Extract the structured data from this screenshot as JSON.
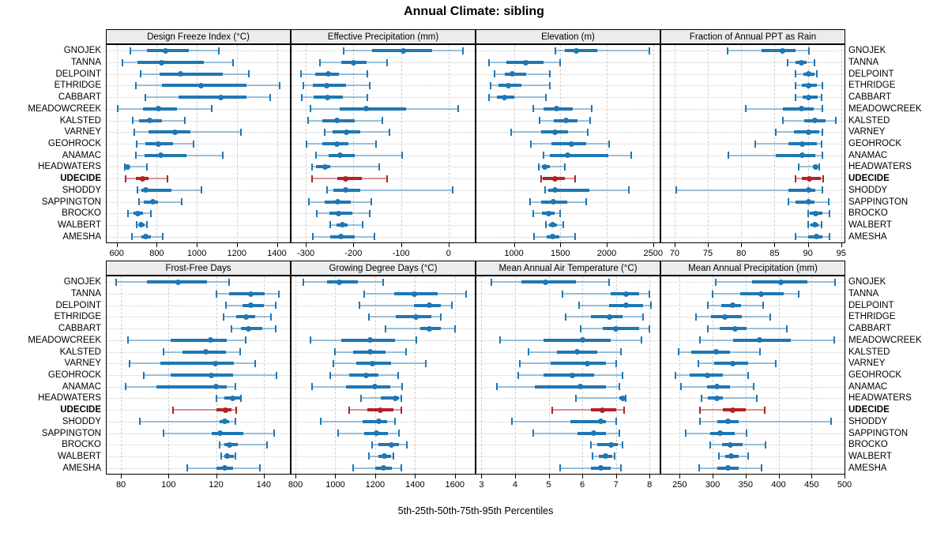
{
  "title": "Annual Climate: sibling",
  "footer": "5th-25th-50th-75th-95th Percentiles",
  "colors": {
    "series_blue": "#1f77b4",
    "series_blue_light": "rgba(31,119,180,0.42)",
    "highlight_red": "#b22222",
    "highlight_red_light": "rgba(178,34,34,0.45)",
    "panel_header_bg": "#ececec",
    "grid": "#cfcfcf",
    "border": "#000000"
  },
  "chart_data": {
    "type": "table",
    "subtype": "trellis-percentile-dotplot",
    "statistic_labels": [
      "5th",
      "25th",
      "50th",
      "75th",
      "95th"
    ],
    "sites": [
      "GNOJEK",
      "TANNA",
      "DELPOINT",
      "ETHRIDGE",
      "CABBART",
      "MEADOWCREEK",
      "KALSTED",
      "VARNEY",
      "GEOHROCK",
      "ANAMAC",
      "HEADWATERS",
      "UDECIDE",
      "SHODDY",
      "SAPPINGTON",
      "BROCKO",
      "WALBERT",
      "AMESHA"
    ],
    "highlight_site": "UDECIDE",
    "panels": [
      {
        "id": "design-freeze-index",
        "title": "Design Freeze Index (°C)",
        "xlim": [
          550,
          1465
        ],
        "ticks": [
          600,
          800,
          1000,
          1200,
          1400
        ],
        "values": [
          [
            670,
            750,
            845,
            960,
            1110
          ],
          [
            630,
            705,
            825,
            1035,
            1180
          ],
          [
            720,
            815,
            920,
            1130,
            1260
          ],
          [
            695,
            825,
            1020,
            1250,
            1415
          ],
          [
            745,
            910,
            1120,
            1250,
            1365
          ],
          [
            605,
            730,
            810,
            900,
            1075
          ],
          [
            680,
            710,
            765,
            825,
            940
          ],
          [
            690,
            760,
            890,
            970,
            1220
          ],
          [
            700,
            745,
            810,
            880,
            985
          ],
          [
            695,
            740,
            820,
            950,
            1130
          ],
          [
            640,
            645,
            655,
            665,
            750
          ],
          [
            645,
            695,
            730,
            760,
            855
          ],
          [
            705,
            725,
            745,
            875,
            1025
          ],
          [
            710,
            735,
            780,
            805,
            925
          ],
          [
            655,
            685,
            707,
            730,
            770
          ],
          [
            700,
            710,
            723,
            740,
            750
          ],
          [
            675,
            723,
            745,
            770,
            830
          ]
        ]
      },
      {
        "id": "effective-precipitation",
        "title": "Effective Precipitation (mm)",
        "xlim": [
          -330,
          55
        ],
        "ticks": [
          -300,
          -200,
          -100,
          0
        ],
        "values": [
          [
            -220,
            -160,
            -95,
            -35,
            30
          ],
          [
            -270,
            -225,
            -200,
            -173,
            -130
          ],
          [
            -310,
            -280,
            -253,
            -231,
            -170
          ],
          [
            -305,
            -285,
            -256,
            -215,
            -165
          ],
          [
            -308,
            -283,
            -255,
            -222,
            -170
          ],
          [
            -290,
            -228,
            -174,
            -90,
            20
          ],
          [
            -295,
            -265,
            -234,
            -197,
            -139
          ],
          [
            -260,
            -244,
            -215,
            -186,
            -125
          ],
          [
            -298,
            -266,
            -234,
            -210,
            -152
          ],
          [
            -278,
            -252,
            -228,
            -197,
            -98
          ],
          [
            -287,
            -278,
            -260,
            -248,
            -146
          ],
          [
            -287,
            -234,
            -216,
            -182,
            -130
          ],
          [
            -256,
            -242,
            -216,
            -186,
            9
          ],
          [
            -294,
            -260,
            -233,
            -206,
            -163
          ],
          [
            -277,
            -250,
            -231,
            -203,
            -166
          ],
          [
            -249,
            -236,
            -223,
            -212,
            -181
          ],
          [
            -286,
            -249,
            -226,
            -198,
            -156
          ]
        ]
      },
      {
        "id": "elevation",
        "title": "Elevation (m)",
        "xlim": [
          595,
          2570
        ],
        "ticks": [
          1000,
          1500,
          2000,
          2500
        ],
        "values": [
          [
            1450,
            1550,
            1670,
            1900,
            2460
          ],
          [
            730,
            920,
            1130,
            1320,
            1500
          ],
          [
            795,
            900,
            985,
            1130,
            1390
          ],
          [
            745,
            835,
            940,
            1080,
            1385
          ],
          [
            735,
            815,
            900,
            1000,
            1340
          ],
          [
            1205,
            1315,
            1460,
            1630,
            1835
          ],
          [
            1280,
            1430,
            1565,
            1685,
            1820
          ],
          [
            970,
            1295,
            1445,
            1580,
            1795
          ],
          [
            1180,
            1405,
            1620,
            1780,
            2025
          ],
          [
            1315,
            1390,
            1580,
            2015,
            2260
          ],
          [
            1265,
            1300,
            1335,
            1390,
            1545
          ],
          [
            1290,
            1310,
            1440,
            1545,
            1655
          ],
          [
            1335,
            1370,
            1440,
            1810,
            2240
          ],
          [
            1175,
            1295,
            1425,
            1570,
            1775
          ],
          [
            1205,
            1300,
            1370,
            1435,
            1500
          ],
          [
            1345,
            1380,
            1415,
            1460,
            1535
          ],
          [
            1220,
            1355,
            1415,
            1490,
            1655
          ]
        ]
      },
      {
        "id": "fraction-ppt-as-rain",
        "title": "Fraction of Annual PPT as Rain",
        "xlim": [
          68,
          95.5
        ],
        "ticks": [
          70,
          75,
          80,
          85,
          90,
          95
        ],
        "values": [
          [
            78,
            83,
            86.2,
            88.2,
            90.2
          ],
          [
            87,
            88.2,
            89,
            89.8,
            91
          ],
          [
            88.2,
            89.3,
            90.1,
            91,
            91.3
          ],
          [
            88.2,
            89.1,
            90.1,
            91.4,
            92.2
          ],
          [
            88.2,
            89.2,
            90.1,
            91.5,
            92.1
          ],
          [
            80.7,
            86.3,
            89,
            90.9,
            92.2
          ],
          [
            86.2,
            89.5,
            91.1,
            92.6,
            94.2
          ],
          [
            85.2,
            87.9,
            90.1,
            91.7,
            92.2
          ],
          [
            82.1,
            87.1,
            89.1,
            91.4,
            92.1
          ],
          [
            78.1,
            85.2,
            89.1,
            91.1,
            92.2
          ],
          [
            88.6,
            90.8,
            91.2,
            91.5,
            91.7
          ],
          [
            88.1,
            89.1,
            90.2,
            92,
            92.3
          ],
          [
            70.3,
            87.1,
            90.1,
            91.1,
            92.2
          ],
          [
            87.1,
            88.2,
            90.1,
            91,
            93.1
          ],
          [
            90,
            90.3,
            91.2,
            92.2,
            93.3
          ],
          [
            90,
            90.4,
            91,
            91.6,
            92.1
          ],
          [
            88.2,
            90,
            91.3,
            92.2,
            93.3
          ]
        ]
      },
      {
        "id": "frost-free-days",
        "title": "Frost-Free Days",
        "xlim": [
          74,
          151
        ],
        "ticks": [
          80,
          100,
          120,
          140
        ],
        "values": [
          [
            78,
            91,
            104,
            116,
            125.5
          ],
          [
            120,
            125.5,
            134.5,
            140.5,
            146.5
          ],
          [
            124,
            131,
            134.5,
            140,
            145
          ],
          [
            123,
            128.5,
            132.5,
            136.5,
            143
          ],
          [
            126.5,
            130.5,
            133.5,
            139.5,
            145
          ],
          [
            83,
            101,
            117.5,
            124.5,
            132.5
          ],
          [
            98,
            106,
            115.5,
            124,
            130
          ],
          [
            83.5,
            96.5,
            119.5,
            127.5,
            136.5
          ],
          [
            89.5,
            101,
            118,
            127,
            145.5
          ],
          [
            82,
            95,
            120,
            124.5,
            128
          ],
          [
            120,
            123.5,
            127,
            130,
            130.5
          ],
          [
            102,
            120,
            124,
            126.5,
            128.5
          ],
          [
            88,
            121.5,
            123.5,
            125.5,
            128
          ],
          [
            98,
            118,
            121.5,
            131.5,
            144.5
          ],
          [
            121.5,
            123.5,
            125.5,
            129,
            141.5
          ],
          [
            122,
            123.5,
            124.5,
            127.5,
            128
          ],
          [
            108,
            120,
            123.5,
            127,
            138.5
          ]
        ]
      },
      {
        "id": "growing-degree-days",
        "title": "Growing Degree Days (°C)",
        "xlim": [
          780,
          1700
        ],
        "ticks": [
          800,
          1000,
          1200,
          1400,
          1600
        ],
        "values": [
          [
            840,
            960,
            1020,
            1115,
            1240
          ],
          [
            1145,
            1295,
            1395,
            1515,
            1655
          ],
          [
            1120,
            1395,
            1470,
            1530,
            1585
          ],
          [
            1170,
            1305,
            1405,
            1480,
            1530
          ],
          [
            1250,
            1425,
            1470,
            1530,
            1600
          ],
          [
            875,
            1030,
            1175,
            1300,
            1405
          ],
          [
            1000,
            1090,
            1175,
            1250,
            1355
          ],
          [
            990,
            1105,
            1185,
            1280,
            1455
          ],
          [
            975,
            1070,
            1155,
            1215,
            1315
          ],
          [
            885,
            1055,
            1200,
            1275,
            1335
          ],
          [
            1130,
            1230,
            1300,
            1320,
            1330
          ],
          [
            1070,
            1160,
            1225,
            1290,
            1330
          ],
          [
            925,
            1135,
            1220,
            1260,
            1300
          ],
          [
            1015,
            1145,
            1205,
            1265,
            1320
          ],
          [
            1185,
            1215,
            1280,
            1320,
            1360
          ],
          [
            1170,
            1215,
            1245,
            1280,
            1290
          ],
          [
            1090,
            1200,
            1240,
            1285,
            1330
          ]
        ]
      },
      {
        "id": "mean-annual-air-temperature",
        "title": "Mean Annual Air Temperature (°C)",
        "xlim": [
          2.85,
          8.3
        ],
        "ticks": [
          3,
          4,
          5,
          6,
          7,
          8
        ],
        "values": [
          [
            3.3,
            4.2,
            4.9,
            5.8,
            6.8
          ],
          [
            5.4,
            6.85,
            7.3,
            7.7,
            8
          ],
          [
            5.9,
            6.8,
            7.3,
            7.8,
            8.05
          ],
          [
            5.5,
            6.25,
            6.8,
            7.2,
            7.8
          ],
          [
            5.95,
            6.6,
            7,
            7.7,
            8
          ],
          [
            3.55,
            4.85,
            6,
            6.85,
            7.75
          ],
          [
            4.4,
            5.25,
            5.85,
            6.45,
            7.15
          ],
          [
            4.15,
            5.05,
            6.15,
            6.7,
            7
          ],
          [
            4.1,
            4.85,
            5.7,
            6.35,
            7.2
          ],
          [
            3.45,
            4.6,
            5.95,
            6.7,
            7.1
          ],
          [
            5.8,
            7.1,
            7.2,
            7.25,
            7.3
          ],
          [
            5.1,
            6.25,
            6.6,
            7,
            7.25
          ],
          [
            3.9,
            5.65,
            6.55,
            6.7,
            7
          ],
          [
            4.55,
            5.85,
            6.35,
            6.7,
            7.1
          ],
          [
            6.25,
            6.45,
            6.85,
            7.05,
            7.2
          ],
          [
            6.3,
            6.5,
            6.7,
            6.9,
            6.95
          ],
          [
            5.35,
            6.25,
            6.55,
            6.85,
            7.15
          ]
        ]
      },
      {
        "id": "mean-annual-precipitation",
        "title": "Mean Annual Precipitation (mm)",
        "xlim": [
          222,
          500
        ],
        "ticks": [
          250,
          300,
          350,
          400,
          450,
          500
        ],
        "values": [
          [
            305,
            360,
            403,
            444,
            486
          ],
          [
            300,
            342,
            374,
            408,
            431
          ],
          [
            293,
            313,
            331,
            343,
            376
          ],
          [
            275,
            297,
            318,
            344,
            387
          ],
          [
            293,
            311,
            334,
            351,
            412
          ],
          [
            281,
            331,
            371,
            419,
            485
          ],
          [
            248,
            267,
            305,
            326,
            372
          ],
          [
            278,
            302,
            331,
            354,
            396
          ],
          [
            243,
            265,
            292,
            315,
            354
          ],
          [
            252,
            292,
            306,
            326,
            362
          ],
          [
            283,
            293,
            306,
            315,
            367
          ],
          [
            281,
            315,
            330,
            350,
            379
          ],
          [
            281,
            307,
            323,
            339,
            480
          ],
          [
            259,
            296,
            311,
            333,
            351
          ],
          [
            296,
            314,
            327,
            346,
            380
          ],
          [
            309,
            319,
            328,
            339,
            354
          ],
          [
            279,
            307,
            323,
            340,
            374
          ]
        ]
      }
    ]
  }
}
